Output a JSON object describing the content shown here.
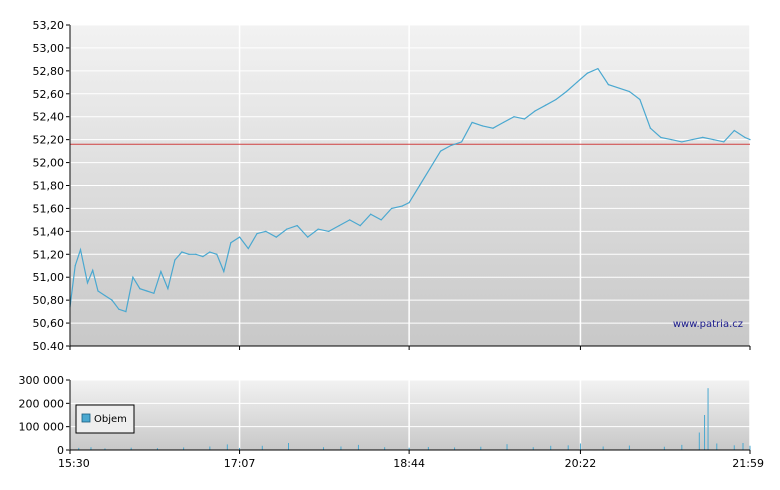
{
  "watermark": "www.patria.cz",
  "colors": {
    "price_line": "#4aa8d0",
    "reference_line": "#d04040",
    "volume_bar": "#4aa8d0",
    "grid": "#ffffff",
    "axis": "#000000",
    "bg_top": "#f2f2f2",
    "bg_bottom": "#c8c8c8"
  },
  "chart_data": [
    {
      "type": "line",
      "series": [
        {
          "x": [
            "15:30",
            "15:33",
            "15:36",
            "15:40",
            "15:43",
            "15:46",
            "15:50",
            "15:54",
            "15:58",
            "16:02",
            "16:06",
            "16:10",
            "16:14",
            "16:18",
            "16:22",
            "16:26",
            "16:30",
            "16:34",
            "16:38",
            "16:42",
            "16:46",
            "16:50",
            "16:54",
            "16:58",
            "17:02",
            "17:07",
            "17:12",
            "17:17",
            "17:22",
            "17:28",
            "17:34",
            "17:40",
            "17:46",
            "17:52",
            "17:58",
            "18:04",
            "18:10",
            "18:16",
            "18:22",
            "18:28",
            "18:34",
            "18:40",
            "18:44",
            "18:50",
            "18:56",
            "19:02",
            "19:08",
            "19:14",
            "19:20",
            "19:26",
            "19:32",
            "19:38",
            "19:44",
            "19:50",
            "19:56",
            "20:02",
            "20:08",
            "20:14",
            "20:20",
            "20:26",
            "20:32",
            "20:38",
            "20:44",
            "20:50",
            "20:56",
            "21:02",
            "21:08",
            "21:14",
            "21:20",
            "21:26",
            "21:32",
            "21:38",
            "21:44",
            "21:50",
            "21:56",
            "21:59"
          ],
          "values": [
            50.74,
            51.1,
            51.24,
            50.95,
            51.06,
            50.88,
            50.84,
            50.8,
            50.72,
            50.7,
            51.0,
            50.9,
            50.88,
            50.86,
            51.05,
            50.9,
            51.15,
            51.22,
            51.2,
            51.2,
            51.18,
            51.22,
            51.2,
            51.05,
            51.3,
            51.35,
            51.25,
            51.38,
            51.4,
            51.35,
            51.42,
            51.45,
            51.35,
            51.42,
            51.4,
            51.45,
            51.5,
            51.45,
            51.55,
            51.5,
            51.6,
            51.62,
            51.65,
            51.8,
            51.95,
            52.1,
            52.15,
            52.18,
            52.35,
            52.32,
            52.3,
            52.35,
            52.4,
            52.38,
            52.45,
            52.5,
            52.55,
            52.62,
            52.7,
            52.78,
            52.82,
            52.68,
            52.65,
            52.62,
            52.55,
            52.3,
            52.22,
            52.2,
            52.18,
            52.2,
            52.22,
            52.2,
            52.18,
            52.28,
            52.22,
            52.2
          ]
        }
      ],
      "reference_value": 52.16,
      "ylim": [
        50.4,
        53.2
      ],
      "yticks": [
        "50.40",
        "50,60",
        "50,80",
        "51,00",
        "51,20",
        "51,40",
        "51,60",
        "51,80",
        "52,00",
        "52,20",
        "52,40",
        "52,60",
        "52,80",
        "53,00",
        "53,20"
      ],
      "grid": true
    },
    {
      "type": "bar",
      "legend": "Objem",
      "legend_position": "left",
      "ylim": [
        0,
        300000
      ],
      "yticks": [
        "0",
        "100 000",
        "200 000",
        "300 000"
      ],
      "xticks": [
        "15:30",
        "17:07",
        "18:44",
        "20:22",
        "21:59"
      ],
      "grid": true,
      "bars": [
        {
          "t": "15:35",
          "v": 9000
        },
        {
          "t": "15:42",
          "v": 12000
        },
        {
          "t": "15:50",
          "v": 7000
        },
        {
          "t": "16:05",
          "v": 10000
        },
        {
          "t": "16:20",
          "v": 8000
        },
        {
          "t": "16:35",
          "v": 11000
        },
        {
          "t": "16:50",
          "v": 15000
        },
        {
          "t": "17:00",
          "v": 24000
        },
        {
          "t": "17:07",
          "v": 9000
        },
        {
          "t": "17:20",
          "v": 18000
        },
        {
          "t": "17:35",
          "v": 30000
        },
        {
          "t": "17:55",
          "v": 12000
        },
        {
          "t": "18:05",
          "v": 15000
        },
        {
          "t": "18:15",
          "v": 22000
        },
        {
          "t": "18:30",
          "v": 12000
        },
        {
          "t": "18:44",
          "v": 10000
        },
        {
          "t": "18:55",
          "v": 13000
        },
        {
          "t": "19:10",
          "v": 11000
        },
        {
          "t": "19:25",
          "v": 14000
        },
        {
          "t": "19:40",
          "v": 25000
        },
        {
          "t": "19:55",
          "v": 12000
        },
        {
          "t": "20:05",
          "v": 18000
        },
        {
          "t": "20:15",
          "v": 20000
        },
        {
          "t": "20:22",
          "v": 28000
        },
        {
          "t": "20:35",
          "v": 15000
        },
        {
          "t": "20:50",
          "v": 19000
        },
        {
          "t": "21:10",
          "v": 14000
        },
        {
          "t": "21:20",
          "v": 22000
        },
        {
          "t": "21:30",
          "v": 75000
        },
        {
          "t": "21:33",
          "v": 150000
        },
        {
          "t": "21:35",
          "v": 265000
        },
        {
          "t": "21:40",
          "v": 28000
        },
        {
          "t": "21:50",
          "v": 20000
        },
        {
          "t": "21:55",
          "v": 30000
        },
        {
          "t": "21:59",
          "v": 18000
        }
      ]
    }
  ]
}
